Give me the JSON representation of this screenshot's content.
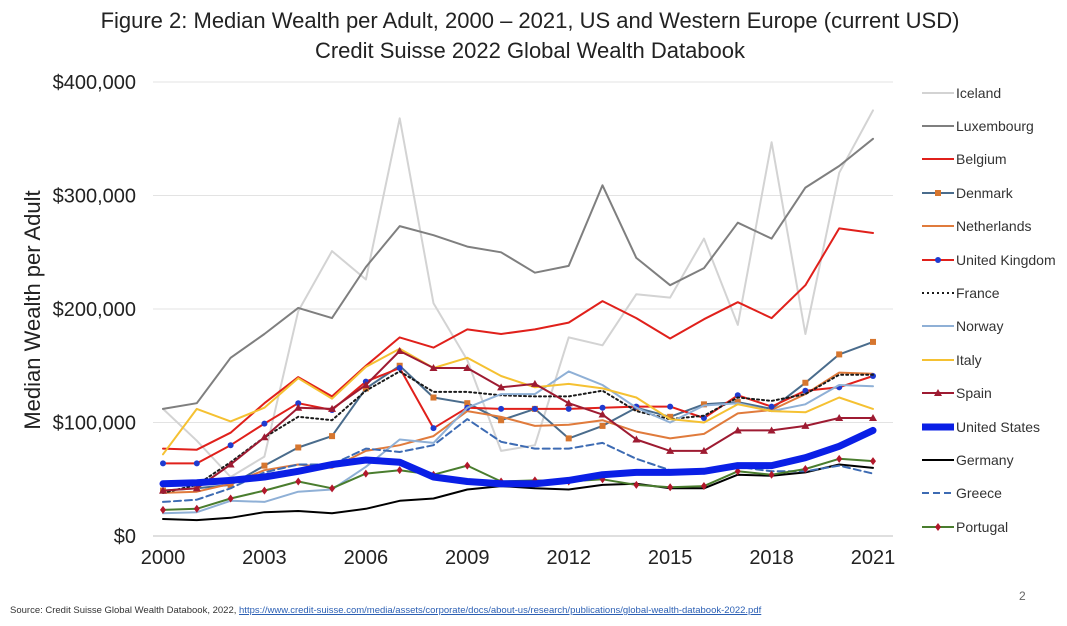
{
  "title_line1": "Figure 2: Median Wealth per Adult, 2000 – 2021, US and Western Europe (current USD)",
  "title_line2": "Credit Suisse 2022 Global Wealth Databook",
  "source_prefix": "Source: Credit Suisse Global Wealth Databook, 2022, ",
  "source_link": "https://www.credit-suisse.com/media/assets/corporate/docs/about-us/research/publications/global-wealth-databook-2022.pdf",
  "page_number": "2",
  "chart_data": {
    "type": "line",
    "title": "Figure 2: Median Wealth per Adult, 2000 – 2021, US and Western Europe (current USD)",
    "subtitle": "Credit Suisse 2022 Global Wealth Databook",
    "xlabel": "",
    "ylabel": "Median Wealth per Adult",
    "xlim": [
      2000,
      2021
    ],
    "ylim": [
      0,
      400000
    ],
    "x_ticks": [
      "2000",
      "2003",
      "2006",
      "2009",
      "2012",
      "2015",
      "2018",
      "2021"
    ],
    "y_ticks": [
      "$0",
      "$100,000",
      "$200,000",
      "$300,000",
      "$400,000"
    ],
    "grid": "horizontal",
    "legend_position": "right",
    "x": [
      2000,
      2001,
      2002,
      2003,
      2004,
      2005,
      2006,
      2007,
      2008,
      2009,
      2010,
      2011,
      2012,
      2013,
      2014,
      2015,
      2016,
      2017,
      2018,
      2019,
      2020,
      2021
    ],
    "series": [
      {
        "name": "Iceland",
        "color": "#d3d3d3",
        "style": "solid",
        "marker": "none",
        "width": 2,
        "values": [
          112000,
          84000,
          52000,
          70000,
          198000,
          251000,
          226000,
          368000,
          205000,
          155000,
          75000,
          80000,
          175000,
          168000,
          213000,
          210000,
          262000,
          186000,
          347000,
          178000,
          320000,
          375000
        ]
      },
      {
        "name": "Luxembourg",
        "color": "#7f7f7f",
        "style": "solid",
        "marker": "none",
        "width": 2,
        "values": [
          112000,
          117000,
          157000,
          178000,
          201000,
          192000,
          237000,
          273000,
          265000,
          255000,
          250000,
          232000,
          238000,
          309000,
          245000,
          221000,
          236000,
          276000,
          262000,
          307000,
          326000,
          350000
        ]
      },
      {
        "name": "Belgium",
        "color": "#e0201b",
        "style": "solid",
        "marker": "none",
        "width": 2,
        "values": [
          77000,
          76000,
          91000,
          117000,
          140000,
          123000,
          150000,
          175000,
          166000,
          182000,
          178000,
          182000,
          188000,
          207000,
          192000,
          174000,
          191000,
          206000,
          192000,
          221000,
          271000,
          267000
        ]
      },
      {
        "name": "Denmark",
        "color": "#4a6c8c",
        "style": "solid",
        "marker": "square",
        "markerColor": "#d6762f",
        "width": 2,
        "values": [
          40000,
          42000,
          45000,
          62000,
          78000,
          88000,
          130000,
          150000,
          122000,
          117000,
          102000,
          112000,
          86000,
          97000,
          113000,
          105000,
          116000,
          118000,
          112000,
          135000,
          160000,
          171000
        ]
      },
      {
        "name": "Netherlands",
        "color": "#e07b3c",
        "style": "solid",
        "marker": "none",
        "width": 2,
        "values": [
          38000,
          39000,
          46000,
          58000,
          63000,
          60000,
          75000,
          80000,
          88000,
          110000,
          105000,
          97000,
          98000,
          102000,
          92000,
          86000,
          90000,
          108000,
          111000,
          125000,
          144000,
          143000
        ]
      },
      {
        "name": "United Kingdom",
        "color": "#e0201b",
        "style": "solid",
        "marker": "circle",
        "markerColor": "#1f3bd0",
        "width": 2,
        "values": [
          64000,
          64000,
          80000,
          99000,
          117000,
          111000,
          136000,
          148000,
          95000,
          113000,
          112000,
          112000,
          112000,
          113000,
          114000,
          114000,
          104000,
          124000,
          114000,
          128000,
          131000,
          141000
        ]
      },
      {
        "name": "France",
        "color": "#1a1a1a",
        "style": "dotted",
        "marker": "none",
        "width": 2,
        "values": [
          38000,
          45000,
          65000,
          87000,
          105000,
          102000,
          128000,
          145000,
          127000,
          127000,
          124000,
          123000,
          123000,
          128000,
          110000,
          103000,
          106000,
          122000,
          119000,
          125000,
          142000,
          142000
        ]
      },
      {
        "name": "Norway",
        "color": "#8fb0d6",
        "style": "solid",
        "marker": "none",
        "width": 2,
        "values": [
          20000,
          21000,
          31000,
          30000,
          39000,
          41000,
          61000,
          85000,
          82000,
          113000,
          125000,
          125000,
          145000,
          133000,
          113000,
          100000,
          115000,
          117000,
          110000,
          116000,
          133000,
          132000
        ]
      },
      {
        "name": "Italy",
        "color": "#f5c132",
        "style": "solid",
        "marker": "none",
        "width": 2,
        "values": [
          72000,
          112000,
          101000,
          113000,
          139000,
          121000,
          149000,
          165000,
          148000,
          157000,
          141000,
          131000,
          134000,
          130000,
          122000,
          103000,
          100000,
          116000,
          110000,
          109000,
          122000,
          112000
        ]
      },
      {
        "name": "Spain",
        "color": "#9e1b32",
        "style": "solid",
        "marker": "triangle",
        "markerColor": "#9e1b32",
        "width": 2,
        "values": [
          40000,
          42000,
          63000,
          87000,
          113000,
          112000,
          133000,
          163000,
          148000,
          148000,
          131000,
          134000,
          117000,
          107000,
          85000,
          75000,
          75000,
          93000,
          93000,
          97000,
          104000,
          104000
        ]
      },
      {
        "name": "United States",
        "color": "#0a1fe6",
        "style": "solid",
        "marker": "none",
        "width": 7,
        "values": [
          46000,
          47000,
          49000,
          52000,
          57000,
          63000,
          67000,
          65000,
          52000,
          48000,
          46000,
          46000,
          49000,
          54000,
          56000,
          56000,
          57000,
          62000,
          62000,
          69000,
          79000,
          93000
        ]
      },
      {
        "name": "Germany",
        "color": "#000000",
        "style": "solid",
        "marker": "none",
        "width": 2,
        "values": [
          15000,
          14000,
          16000,
          21000,
          22000,
          20000,
          24000,
          31000,
          33000,
          41000,
          44000,
          42000,
          41000,
          45000,
          46000,
          42000,
          42000,
          54000,
          53000,
          56000,
          63000,
          60000
        ]
      },
      {
        "name": "Greece",
        "color": "#3d6bb3",
        "style": "dashed",
        "marker": "none",
        "width": 2,
        "values": [
          30000,
          32000,
          42000,
          56000,
          63000,
          63000,
          77000,
          74000,
          80000,
          103000,
          83000,
          77000,
          77000,
          82000,
          68000,
          58000,
          55000,
          61000,
          57000,
          57000,
          62000,
          55000
        ]
      },
      {
        "name": "Portugal",
        "color": "#4a7d2e",
        "style": "solid",
        "marker": "diamond",
        "markerColor": "#b2182b",
        "width": 2,
        "values": [
          23000,
          24000,
          33000,
          40000,
          48000,
          42000,
          55000,
          58000,
          54000,
          62000,
          48000,
          49000,
          48000,
          50000,
          45000,
          43000,
          44000,
          57000,
          54000,
          59000,
          68000,
          66000
        ]
      }
    ]
  }
}
